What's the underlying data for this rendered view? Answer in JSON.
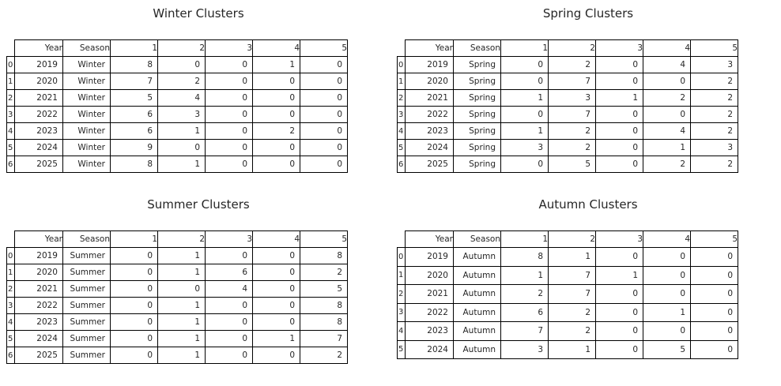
{
  "chart_data": [
    {
      "type": "table",
      "title": "Winter Clusters",
      "columns": [
        "Year",
        "Season",
        "1",
        "2",
        "3",
        "4",
        "5"
      ],
      "rows": [
        {
          "index": "0",
          "cells": [
            "2019",
            "Winter",
            "8",
            "0",
            "0",
            "1",
            "0"
          ]
        },
        {
          "index": "1",
          "cells": [
            "2020",
            "Winter",
            "7",
            "2",
            "0",
            "0",
            "0"
          ]
        },
        {
          "index": "2",
          "cells": [
            "2021",
            "Winter",
            "5",
            "4",
            "0",
            "0",
            "0"
          ]
        },
        {
          "index": "3",
          "cells": [
            "2022",
            "Winter",
            "6",
            "3",
            "0",
            "0",
            "0"
          ]
        },
        {
          "index": "4",
          "cells": [
            "2023",
            "Winter",
            "6",
            "1",
            "0",
            "2",
            "0"
          ]
        },
        {
          "index": "5",
          "cells": [
            "2024",
            "Winter",
            "9",
            "0",
            "0",
            "0",
            "0"
          ]
        },
        {
          "index": "6",
          "cells": [
            "2025",
            "Winter",
            "8",
            "1",
            "0",
            "0",
            "0"
          ]
        }
      ]
    },
    {
      "type": "table",
      "title": "Spring Clusters",
      "columns": [
        "Year",
        "Season",
        "1",
        "2",
        "3",
        "4",
        "5"
      ],
      "rows": [
        {
          "index": "0",
          "cells": [
            "2019",
            "Spring",
            "0",
            "2",
            "0",
            "4",
            "3"
          ]
        },
        {
          "index": "1",
          "cells": [
            "2020",
            "Spring",
            "0",
            "7",
            "0",
            "0",
            "2"
          ]
        },
        {
          "index": "2",
          "cells": [
            "2021",
            "Spring",
            "1",
            "3",
            "1",
            "2",
            "2"
          ]
        },
        {
          "index": "3",
          "cells": [
            "2022",
            "Spring",
            "0",
            "7",
            "0",
            "0",
            "2"
          ]
        },
        {
          "index": "4",
          "cells": [
            "2023",
            "Spring",
            "1",
            "2",
            "0",
            "4",
            "2"
          ]
        },
        {
          "index": "5",
          "cells": [
            "2024",
            "Spring",
            "3",
            "2",
            "0",
            "1",
            "3"
          ]
        },
        {
          "index": "6",
          "cells": [
            "2025",
            "Spring",
            "0",
            "5",
            "0",
            "2",
            "2"
          ]
        }
      ]
    },
    {
      "type": "table",
      "title": "Summer Clusters",
      "columns": [
        "Year",
        "Season",
        "1",
        "2",
        "3",
        "4",
        "5"
      ],
      "rows": [
        {
          "index": "0",
          "cells": [
            "2019",
            "Summer",
            "0",
            "1",
            "0",
            "0",
            "8"
          ]
        },
        {
          "index": "1",
          "cells": [
            "2020",
            "Summer",
            "0",
            "1",
            "6",
            "0",
            "2"
          ]
        },
        {
          "index": "2",
          "cells": [
            "2021",
            "Summer",
            "0",
            "0",
            "4",
            "0",
            "5"
          ]
        },
        {
          "index": "3",
          "cells": [
            "2022",
            "Summer",
            "0",
            "1",
            "0",
            "0",
            "8"
          ]
        },
        {
          "index": "4",
          "cells": [
            "2023",
            "Summer",
            "0",
            "1",
            "0",
            "0",
            "8"
          ]
        },
        {
          "index": "5",
          "cells": [
            "2024",
            "Summer",
            "0",
            "1",
            "0",
            "1",
            "7"
          ]
        },
        {
          "index": "6",
          "cells": [
            "2025",
            "Summer",
            "0",
            "1",
            "0",
            "0",
            "2"
          ]
        }
      ]
    },
    {
      "type": "table",
      "title": "Autumn Clusters",
      "columns": [
        "Year",
        "Season",
        "1",
        "2",
        "3",
        "4",
        "5"
      ],
      "rows": [
        {
          "index": "0",
          "cells": [
            "2019",
            "Autumn",
            "8",
            "1",
            "0",
            "0",
            "0"
          ]
        },
        {
          "index": "1",
          "cells": [
            "2020",
            "Autumn",
            "1",
            "7",
            "1",
            "0",
            "0"
          ]
        },
        {
          "index": "2",
          "cells": [
            "2021",
            "Autumn",
            "2",
            "7",
            "0",
            "0",
            "0"
          ]
        },
        {
          "index": "3",
          "cells": [
            "2022",
            "Autumn",
            "6",
            "2",
            "0",
            "1",
            "0"
          ]
        },
        {
          "index": "4",
          "cells": [
            "2023",
            "Autumn",
            "7",
            "2",
            "0",
            "0",
            "0"
          ]
        },
        {
          "index": "5",
          "cells": [
            "2024",
            "Autumn",
            "3",
            "1",
            "0",
            "5",
            "0"
          ]
        }
      ]
    }
  ]
}
